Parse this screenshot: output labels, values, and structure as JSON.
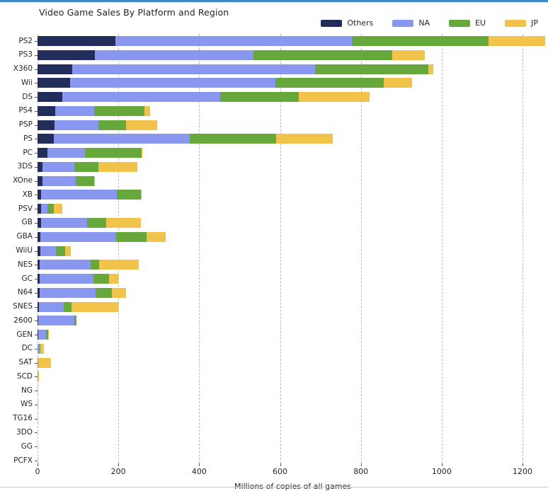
{
  "window": {
    "top_border_color": "#3D87C6",
    "bottom_border_color": "#C9C9C9",
    "background": "#FFFFFF"
  },
  "chart_data": {
    "type": "bar",
    "orientation": "horizontal",
    "stacked": true,
    "title": "Video Game Sales By Platform and Region",
    "xlabel": "Millions of copies of all games",
    "ylabel": "",
    "legend_position": "top-right",
    "grid": "vertical dashed",
    "xlim": [
      0,
      1263
    ],
    "x_ticks": [
      0,
      200,
      400,
      600,
      800,
      1000,
      1200
    ],
    "categories": [
      "PS2",
      "PS3",
      "X360",
      "Wii",
      "DS",
      "PS4",
      "PSP",
      "PS",
      "PC",
      "3DS",
      "XOne",
      "XB",
      "PSV",
      "GB",
      "GBA",
      "WiiU",
      "NES",
      "GC",
      "N64",
      "SNES",
      "2600",
      "GEN",
      "DC",
      "SAT",
      "SCD",
      "NG",
      "WS",
      "TG16",
      "3DO",
      "GG",
      "PCFX"
    ],
    "series": [
      {
        "name": "Others",
        "color": "#232D5C",
        "values": [
          193.44,
          141.93,
          85.54,
          80.61,
          60.53,
          43.36,
          42.19,
          40.91,
          24.86,
          12.63,
          11.92,
          8.72,
          8.45,
          8.2,
          7.73,
          6.45,
          5.31,
          5.18,
          4.38,
          3.22,
          0.91,
          0.89,
          0.27,
          0.07,
          0.05,
          0.0,
          0.0,
          0.0,
          0.0,
          0.0,
          0.0
        ]
      },
      {
        "name": "NA",
        "color": "#8A97EE",
        "values": [
          583.84,
          392.26,
          601.05,
          507.71,
          390.71,
          96.8,
          108.99,
          336.51,
          93.28,
          78.87,
          83.19,
          186.69,
          16.2,
          114.32,
          187.54,
          38.32,
          125.94,
          133.46,
          139.02,
          61.23,
          90.6,
          19.27,
          5.43,
          0.72,
          1.0,
          0.0,
          0.0,
          0.0,
          0.0,
          0.0,
          0.0
        ]
      },
      {
        "name": "EU",
        "color": "#67A83C",
        "values": [
          339.29,
          343.71,
          280.58,
          268.38,
          194.65,
          123.7,
          68.25,
          213.6,
          139.68,
          58.52,
          45.65,
          60.95,
          16.46,
          47.82,
          75.25,
          24.23,
          21.15,
          38.71,
          41.06,
          19.04,
          5.47,
          5.52,
          1.69,
          0.54,
          0.36,
          0.0,
          0.0,
          0.0,
          0.0,
          0.0,
          0.0
        ]
      },
      {
        "name": "JP",
        "color": "#F2C34B",
        "values": [
          139.2,
          79.99,
          12.43,
          69.35,
          175.57,
          14.3,
          76.79,
          139.78,
          0.17,
          97.35,
          0.34,
          1.38,
          20.96,
          85.12,
          47.33,
          12.79,
          98.65,
          21.58,
          34.22,
          116.55,
          0.0,
          2.67,
          8.56,
          32.26,
          0.45,
          1.44,
          1.42,
          0.16,
          0.1,
          0.04,
          0.03
        ]
      }
    ]
  }
}
